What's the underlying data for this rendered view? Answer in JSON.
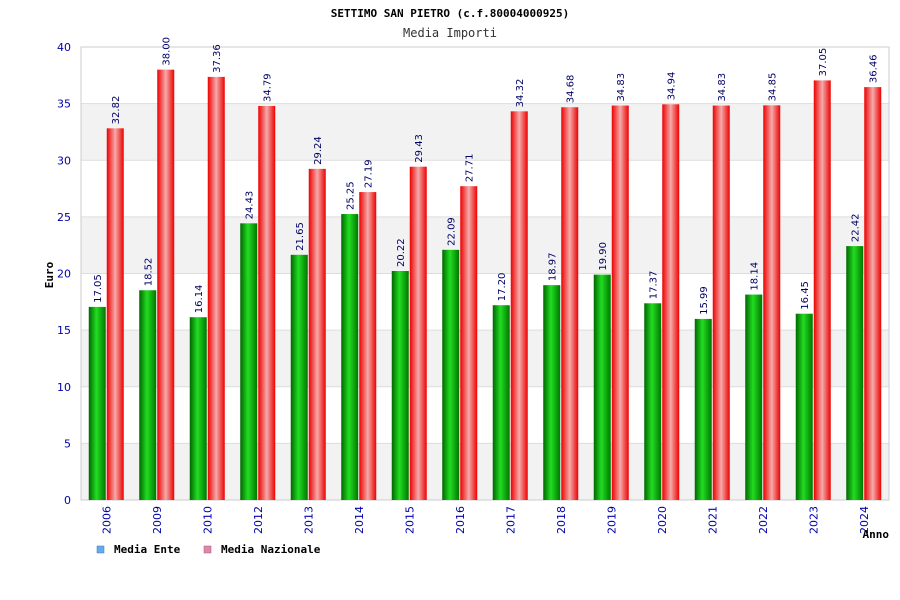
{
  "chart_data": {
    "type": "bar",
    "title": "SETTIMO SAN PIETRO (c.f.80004000925)",
    "subtitle": "Media Importi",
    "ylabel": "Euro",
    "xlabel": "Anno",
    "ylim": [
      0,
      40
    ],
    "yticks": [
      "0",
      "5",
      "10",
      "15",
      "20",
      "25",
      "30",
      "35",
      "40"
    ],
    "grid": "horizontal bands",
    "legend_position": "bottom-left",
    "categories": [
      "2006",
      "2009",
      "2010",
      "2012",
      "2013",
      "2014",
      "2015",
      "2016",
      "2017",
      "2018",
      "2019",
      "2020",
      "2021",
      "2022",
      "2023",
      "2024"
    ],
    "series": [
      {
        "name": "Media Ente",
        "color": "#00aa00",
        "legend_color": "#66aaee",
        "values": [
          17.05,
          18.52,
          16.14,
          24.43,
          21.65,
          25.25,
          20.22,
          22.09,
          17.2,
          18.97,
          19.9,
          17.37,
          15.99,
          18.14,
          16.45,
          22.42
        ],
        "labels": [
          "17.05",
          "18.52",
          "16.14",
          "24.43",
          "21.65",
          "25.25",
          "20.22",
          "22.09",
          "17.20",
          "18.97",
          "19.90",
          "17.37",
          "15.99",
          "18.14",
          "16.45",
          "22.42"
        ]
      },
      {
        "name": "Media Nazionale",
        "color": "#ee1111",
        "legend_color": "#dd88aa",
        "values": [
          32.82,
          38.0,
          37.36,
          34.79,
          29.24,
          27.19,
          29.43,
          27.71,
          34.32,
          34.68,
          34.83,
          34.94,
          34.83,
          34.85,
          37.05,
          36.46
        ],
        "labels": [
          "32.82",
          "38.00",
          "37.36",
          "34.79",
          "29.24",
          "27.19",
          "29.43",
          "27.71",
          "34.32",
          "34.68",
          "34.83",
          "34.94",
          "34.83",
          "34.85",
          "37.05",
          "36.46"
        ]
      }
    ]
  }
}
